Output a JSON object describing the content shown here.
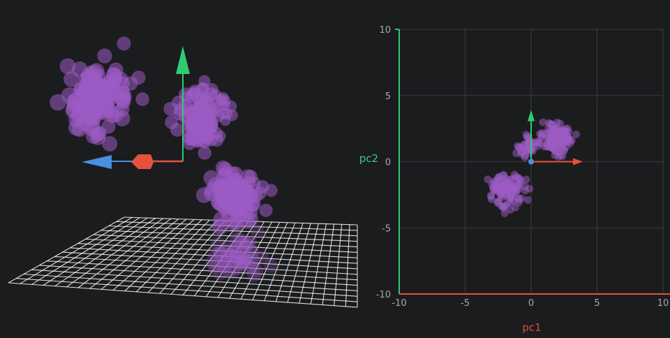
{
  "colors": {
    "background": "#1b1c1e",
    "points": "#9c5bc4",
    "x_axis": "#e5533c",
    "y_axis": "#2ecc71",
    "z_axis": "#4a8fe0",
    "grid_3d": "#ffffff",
    "grid_2d": "#3a3b3e",
    "tick_text": "#aaaaaa"
  },
  "chart_data": [
    {
      "type": "scatter",
      "view": "3d",
      "axes": [
        "x",
        "y",
        "z"
      ],
      "clusters": [
        {
          "center": [
            -2.5,
            1.8,
            0.5
          ],
          "spread": 0.7,
          "count": 130
        },
        {
          "center": [
            0.2,
            1.0,
            -0.6
          ],
          "spread": 0.55,
          "count": 120
        },
        {
          "center": [
            2.1,
            -0.8,
            0.4
          ],
          "spread": 0.55,
          "count": 110
        }
      ],
      "floor_grid": true
    },
    {
      "type": "scatter",
      "view": "2d",
      "xlabel": "pc1",
      "ylabel": "pc2",
      "xlim": [
        -10,
        10
      ],
      "ylim": [
        -10,
        10
      ],
      "xticks": [
        "-10",
        "-5",
        "0",
        "5",
        "10"
      ],
      "yticks": [
        "10",
        "5",
        "0",
        "-5",
        "-10"
      ],
      "grid": true,
      "clusters": [
        {
          "center": [
            -1.8,
            -2.2
          ],
          "spread": 0.9,
          "count": 110
        },
        {
          "center": [
            1.9,
            1.7
          ],
          "spread": 0.85,
          "count": 130
        },
        {
          "center": [
            -0.2,
            1.2
          ],
          "spread": 0.6,
          "count": 40
        }
      ]
    }
  ]
}
